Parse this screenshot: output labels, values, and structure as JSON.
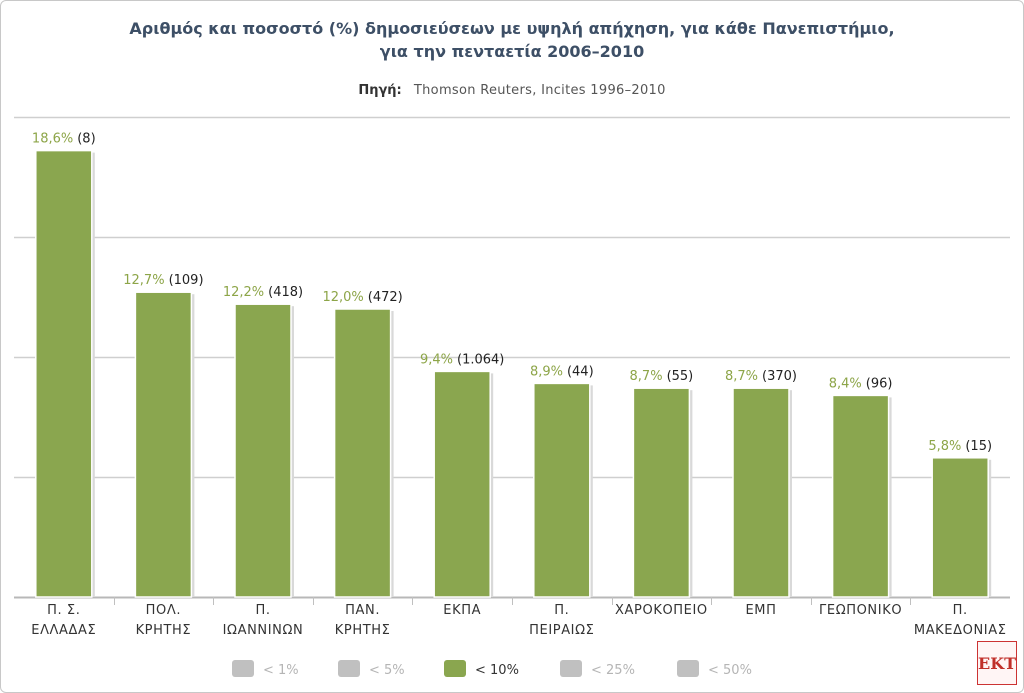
{
  "chart_data": {
    "type": "bar",
    "title_line1": "Αριθμός και ποσοστό (%) δημοσιεύσεων με υψηλή απήχηση, για κάθε Πανεπιστήμιο,",
    "title_line2": "για την πενταετία 2006–2010",
    "source_label": "Πηγή:",
    "source_value": "Thomson Reuters, Incites 1996–2010",
    "categories": [
      [
        "Π. Σ.",
        "ΕΛΛΑΔΑΣ"
      ],
      [
        "ΠΟΛ.",
        "ΚΡΗΤΗΣ"
      ],
      [
        "Π.",
        "ΙΩΑΝΝΙΝΩΝ"
      ],
      [
        "ΠΑΝ.",
        "ΚΡΗΤΗΣ"
      ],
      [
        "ΕΚΠΑ"
      ],
      [
        "Π.",
        "ΠΕΙΡΑΙΩΣ"
      ],
      [
        "ΧΑΡΟΚΟΠΕΙΟ"
      ],
      [
        "ΕΜΠ"
      ],
      [
        "ΓΕΩΠΟΝΙΚΟ"
      ],
      [
        "Π.",
        "ΜΑΚΕΔΟΝΙΑΣ"
      ]
    ],
    "values": [
      18.6,
      12.7,
      12.2,
      12.0,
      9.4,
      8.9,
      8.7,
      8.7,
      8.4,
      5.8
    ],
    "percent_labels": [
      "18,6%",
      "12,7%",
      "12,2%",
      "12,0%",
      "9,4%",
      "8,9%",
      "8,7%",
      "8,7%",
      "8,4%",
      "5,8%"
    ],
    "count_labels": [
      "(8)",
      "(109)",
      "(418)",
      "(472)",
      "(1.064)",
      "(44)",
      "(55)",
      "(370)",
      "(96)",
      "(15)"
    ],
    "ylim": [
      0,
      20
    ],
    "grid": true,
    "bar_color": "#8aa64f",
    "legend": [
      {
        "label": "< 1%",
        "active": false
      },
      {
        "label": "< 5%",
        "active": false
      },
      {
        "label": "< 10%",
        "active": true
      },
      {
        "label": "< 25%",
        "active": false
      },
      {
        "label": "< 50%",
        "active": false
      }
    ],
    "legend_placement": "bottom",
    "legend_active_color": "#8aa64f",
    "legend_inactive_color": "#c0c0c0"
  },
  "logo": {
    "text": "ΕΚΤ"
  }
}
